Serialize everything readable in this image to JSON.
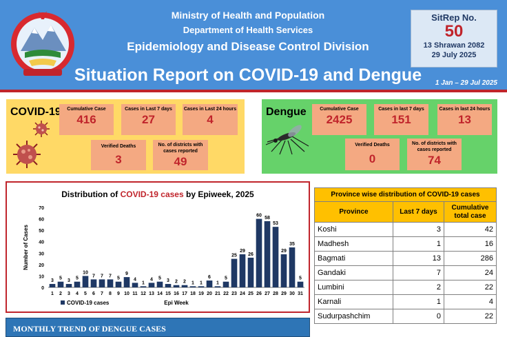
{
  "header": {
    "ministry": "Ministry of Health and Population",
    "department": "Department of Health Services",
    "division": "Epidemiology and Disease Control Division",
    "title": "Situation Report on COVID-19 and Dengue",
    "period": "1 Jan – 29 Jul 2025",
    "emblem_icon": "nepal-emblem-icon"
  },
  "sitrep": {
    "label": "SitRep No.",
    "number": "50",
    "date_np": "13 Shrawan 2082",
    "date_en": "29 July 2025"
  },
  "covid": {
    "title": "COVID-19",
    "icon": "virus-icon",
    "cumulative_label": "Cumulative Case",
    "cumulative": "416",
    "last7_label": "Cases in Last 7 days",
    "last7": "27",
    "last24_label": "Cases in Last 24 hours",
    "last24": "4",
    "deaths_label": "Verified Deaths",
    "deaths": "3",
    "districts_label": "No. of districts with cases reported",
    "districts": "49"
  },
  "dengue": {
    "title": "Dengue",
    "icon": "mosquito-icon",
    "cumulative_label": "Cumulative Case",
    "cumulative": "2425",
    "last7_label": "Cases in last 7 days",
    "last7": "151",
    "last24_label": "Cases in last 24 hours",
    "last24": "13",
    "deaths_label": "Verified Deaths",
    "deaths": "0",
    "districts_label": "No. of districts with cases reported",
    "districts": "74"
  },
  "chart_data": {
    "type": "bar",
    "title_prefix": "Distribution of ",
    "title_highlight": "COVID-19 cases",
    "title_suffix": " by Epiweek, 2025",
    "xlabel": "Epi Week",
    "ylabel": "Number of Cases",
    "ylim": [
      0,
      70
    ],
    "yticks": [
      0,
      10,
      20,
      30,
      40,
      50,
      60,
      70
    ],
    "categories": [
      "1",
      "2",
      "3",
      "4",
      "5",
      "6",
      "7",
      "8",
      "9",
      "10",
      "11",
      "12",
      "13",
      "14",
      "15",
      "16",
      "17",
      "18",
      "19",
      "20",
      "21",
      "22",
      "23",
      "24",
      "25",
      "26",
      "27",
      "28",
      "29",
      "30",
      "31"
    ],
    "series": [
      {
        "name": "COVID-19 cases",
        "values": [
          3,
          5,
          3,
          5,
          10,
          7,
          7,
          7,
          5,
          9,
          4,
          1,
          4,
          5,
          3,
          2,
          2,
          1,
          1,
          6,
          1,
          5,
          25,
          29,
          26,
          60,
          58,
          53,
          29,
          35,
          5
        ],
        "color": "#1f3864"
      }
    ],
    "legend_position": "bottom-left",
    "grid": false
  },
  "province_table": {
    "caption": "Province wise distribution of COVID-19 cases",
    "headers": [
      "Province",
      "Last 7 days",
      "Cumulative total case"
    ],
    "rows": [
      [
        "Koshi",
        "3",
        "42"
      ],
      [
        "Madhesh",
        "1",
        "16"
      ],
      [
        "Bagmati",
        "13",
        "286"
      ],
      [
        "Gandaki",
        "7",
        "24"
      ],
      [
        "Lumbini",
        "2",
        "22"
      ],
      [
        "Karnali",
        "1",
        "4"
      ],
      [
        "Sudurpashchim",
        "0",
        "22"
      ]
    ]
  },
  "monthly": {
    "title": "MONTHLY TREND OF DENGUE CASES"
  }
}
